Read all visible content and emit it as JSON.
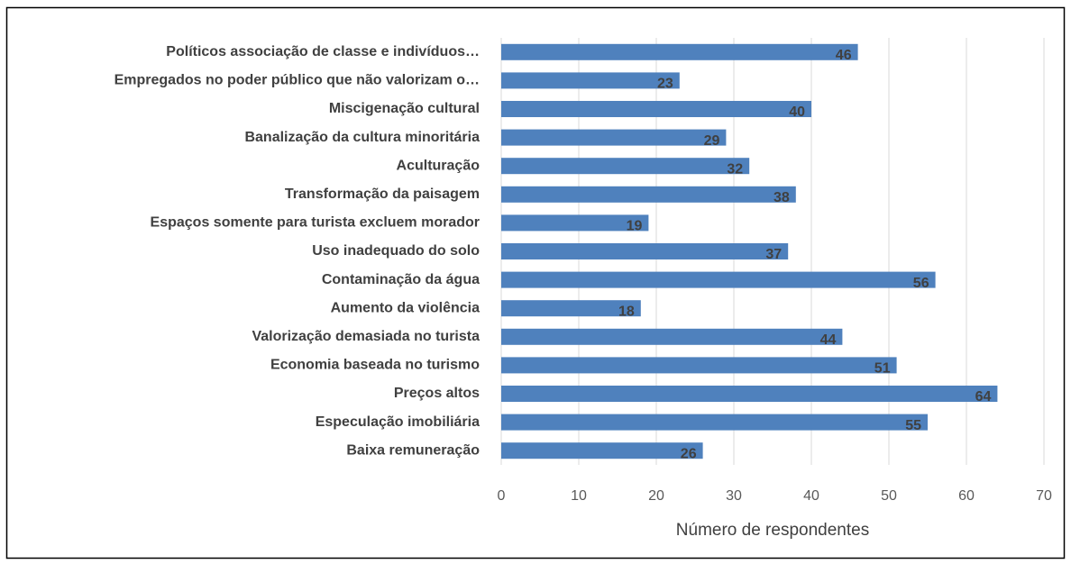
{
  "chart_data": {
    "type": "bar",
    "orientation": "horizontal",
    "x_axis_label": "Número de respondentes",
    "categories": [
      "Políticos associação de classe e indivíduos…",
      "Empregados no poder público que não valorizam o…",
      "Miscigenação cultural",
      "Banalização da cultura minoritária",
      "Aculturação",
      "Transformação da paisagem",
      "Espaços somente para turista excluem morador",
      "Uso inadequado do solo",
      "Contaminação da água",
      "Aumento da violência",
      "Valorização demasiada no turista",
      "Economia baseada no turismo",
      "Preços altos",
      "Especulação imobiliária",
      "Baixa remuneração"
    ],
    "values": [
      46,
      23,
      40,
      29,
      32,
      38,
      19,
      37,
      56,
      18,
      44,
      51,
      64,
      55,
      26
    ],
    "color": "#4f81bd",
    "xlim": [
      0,
      70
    ],
    "xticks": [
      0,
      10,
      20,
      30,
      40,
      50,
      60,
      70
    ],
    "grid": true
  }
}
